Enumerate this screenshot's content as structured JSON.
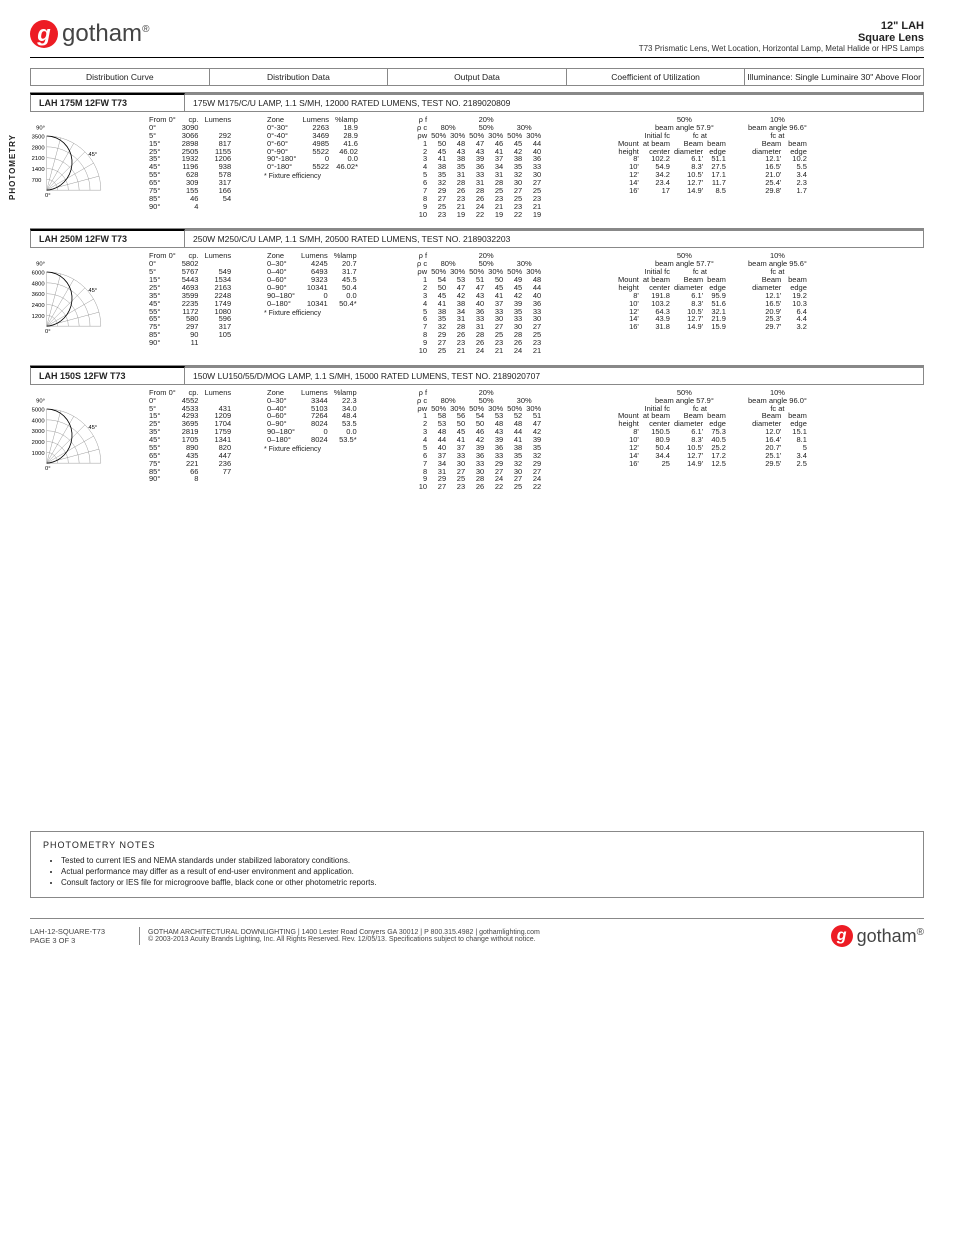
{
  "brand": "gotham",
  "header": {
    "title": "12\" LAH",
    "sub1": "Square Lens",
    "sub2": "T73 Prismatic Lens, Wet Location, Horizontal Lamp, Metal Halide or HPS Lamps"
  },
  "side": "PHOTOMETRY",
  "tabs": [
    "Distribution Curve",
    "Distribution Data",
    "Output Data",
    "Coefficient of Utilization",
    "Illuminance: Single Luminaire 30\" Above Floor"
  ],
  "products": [
    {
      "name": "LAH 175M 12FW T73",
      "desc": "175W M175/C/U LAMP, 1.1 S/MH, 12000 RATED LUMENS, TEST NO. 2189020809",
      "polar_scale": [
        700,
        1400,
        2100,
        2800,
        3500
      ],
      "dist_from_label": "From 0°",
      "dist": {
        "angles": [
          "0°",
          "5°",
          "15°",
          "25°",
          "35°",
          "45°",
          "55°",
          "65°",
          "75°",
          "85°",
          "90°"
        ],
        "cp": [
          3090,
          3066,
          2898,
          2505,
          1932,
          1196,
          628,
          309,
          155,
          46,
          4
        ],
        "lumens": [
          "",
          292,
          817,
          1155,
          1206,
          938,
          578,
          317,
          166,
          54,
          ""
        ]
      },
      "output": {
        "zones": [
          "0°-30°",
          "0°-40°",
          "0°-60°",
          "0°-90°",
          "90°-180°",
          "0°-180°"
        ],
        "lumens": [
          2263,
          3469,
          4985,
          5522,
          0,
          5522
        ],
        "pct": [
          "18.9",
          "28.9",
          "41.6",
          "46.02",
          "0.0",
          "46.02*"
        ],
        "note": "* Fixture efficiency"
      },
      "cu": {
        "pf": [
          "1",
          "2",
          "3",
          "4",
          "5",
          "6",
          "7",
          "8",
          "9",
          "10"
        ],
        "c80": [
          [
            50,
            48
          ],
          [
            45,
            43
          ],
          [
            41,
            38
          ],
          [
            38,
            35
          ],
          [
            35,
            31
          ],
          [
            32,
            28
          ],
          [
            29,
            26
          ],
          [
            27,
            23
          ],
          [
            25,
            21
          ],
          [
            23,
            19
          ]
        ],
        "c50": [
          [
            47,
            46
          ],
          [
            43,
            41
          ],
          [
            39,
            37
          ],
          [
            36,
            34
          ],
          [
            33,
            31
          ],
          [
            31,
            28
          ],
          [
            28,
            25
          ],
          [
            26,
            23
          ],
          [
            24,
            21
          ],
          [
            22,
            19
          ]
        ],
        "c30": [
          [
            45,
            44
          ],
          [
            42,
            40
          ],
          [
            38,
            36
          ],
          [
            35,
            33
          ],
          [
            32,
            30
          ],
          [
            30,
            27
          ],
          [
            27,
            25
          ],
          [
            25,
            23
          ],
          [
            23,
            21
          ],
          [
            22,
            19
          ]
        ]
      },
      "illum": {
        "b50": {
          "angle": "beam angle 57.9°",
          "heights": [
            "8'",
            "10'",
            "12'",
            "14'",
            "16'"
          ],
          "fc": [
            102.2,
            54.9,
            34.2,
            23.4,
            17.0
          ],
          "dia": [
            "6.1'",
            "8.3'",
            "10.5'",
            "12.7'",
            "14.9'"
          ],
          "edge": [
            51.1,
            27.5,
            17.1,
            11.7,
            8.5
          ]
        },
        "b10": {
          "angle": "beam angle 96.6°",
          "heights": [
            "8'",
            "10'",
            "12'",
            "14'",
            "16'"
          ],
          "dia": [
            "12.1'",
            "16.5'",
            "21.0'",
            "25.4'",
            "29.8'"
          ],
          "edge": [
            10.2,
            5.5,
            3.4,
            2.3,
            1.7
          ]
        }
      }
    },
    {
      "name": "LAH 250M 12FW T73",
      "desc": "250W M250/C/U LAMP, 1.1 S/MH, 20500 RATED LUMENS, TEST NO. 2189032203",
      "polar_scale": [
        1200,
        2400,
        3600,
        4800,
        6000
      ],
      "dist": {
        "angles": [
          "0°",
          "5°",
          "15°",
          "25°",
          "35°",
          "45°",
          "55°",
          "65°",
          "75°",
          "85°",
          "90°"
        ],
        "cp": [
          5802,
          5767,
          5443,
          4693,
          3599,
          2235,
          1172,
          580,
          297,
          90,
          11
        ],
        "lumens": [
          "",
          549,
          1534,
          2163,
          2248,
          1749,
          1080,
          596,
          317,
          105,
          ""
        ]
      },
      "output": {
        "zones": [
          "0–30°",
          "0–40°",
          "0–60°",
          "0–90°",
          "90–180°",
          "0–180°"
        ],
        "lumens": [
          4245,
          6493,
          9323,
          10341,
          0,
          10341
        ],
        "pct": [
          "20.7",
          "31.7",
          "45.5",
          "50.4",
          "0.0",
          "50.4*"
        ],
        "note": "* Fixture efficiency"
      },
      "cu": {
        "pf": [
          "1",
          "2",
          "3",
          "4",
          "5",
          "6",
          "7",
          "8",
          "9",
          "10"
        ],
        "c80": [
          [
            54,
            53
          ],
          [
            50,
            47
          ],
          [
            45,
            42
          ],
          [
            41,
            38
          ],
          [
            38,
            34
          ],
          [
            35,
            31
          ],
          [
            32,
            28
          ],
          [
            29,
            26
          ],
          [
            27,
            23
          ],
          [
            25,
            21
          ]
        ],
        "c50": [
          [
            51,
            50
          ],
          [
            47,
            45
          ],
          [
            43,
            41
          ],
          [
            40,
            37
          ],
          [
            36,
            33
          ],
          [
            33,
            30
          ],
          [
            31,
            27
          ],
          [
            28,
            25
          ],
          [
            26,
            23
          ],
          [
            24,
            21
          ]
        ],
        "c30": [
          [
            49,
            48
          ],
          [
            45,
            44
          ],
          [
            42,
            40
          ],
          [
            39,
            36
          ],
          [
            35,
            33
          ],
          [
            33,
            30
          ],
          [
            30,
            27
          ],
          [
            28,
            25
          ],
          [
            26,
            23
          ],
          [
            24,
            21
          ]
        ]
      },
      "illum": {
        "b50": {
          "angle": "beam angle 57.7°",
          "heights": [
            "8'",
            "10'",
            "12'",
            "14'",
            "16'"
          ],
          "fc": [
            191.8,
            103.2,
            64.3,
            43.9,
            31.8
          ],
          "dia": [
            "6.1'",
            "8.3'",
            "10.5'",
            "12.7'",
            "14.9'"
          ],
          "edge": [
            95.9,
            51.6,
            32.1,
            21.9,
            15.9
          ]
        },
        "b10": {
          "angle": "beam angle 95.6°",
          "heights": [
            "8'",
            "10'",
            "12'",
            "14'",
            "16'"
          ],
          "dia": [
            "12.1'",
            "16.5'",
            "20.9'",
            "25.3'",
            "29.7'"
          ],
          "edge": [
            19.2,
            10.3,
            6.4,
            4.4,
            3.2
          ]
        }
      }
    },
    {
      "name": "LAH 150S 12FW T73",
      "desc": "150W LU150/55/D/MOG LAMP, 1.1 S/MH, 15000 RATED LUMENS, TEST NO. 2189020707",
      "polar_scale": [
        1000,
        2000,
        3000,
        4000,
        5000
      ],
      "dist": {
        "angles": [
          "0°",
          "5°",
          "15°",
          "25°",
          "35°",
          "45°",
          "55°",
          "65°",
          "75°",
          "85°",
          "90°"
        ],
        "cp": [
          4552,
          4533,
          4293,
          3695,
          2819,
          1705,
          890,
          435,
          221,
          66,
          8
        ],
        "lumens": [
          "",
          431,
          1209,
          1704,
          1759,
          1341,
          820,
          447,
          236,
          77,
          ""
        ]
      },
      "output": {
        "zones": [
          "0–30°",
          "0–40°",
          "0–60°",
          "0–90°",
          "90–180°",
          "0–180°"
        ],
        "lumens": [
          3344,
          5103,
          7264,
          8024,
          0,
          8024
        ],
        "pct": [
          "22.3",
          "34.0",
          "48.4",
          "53.5",
          "0.0",
          "53.5*"
        ],
        "note": "* Fixture efficiency"
      },
      "cu": {
        "pf": [
          "1",
          "2",
          "3",
          "4",
          "5",
          "6",
          "7",
          "8",
          "9",
          "10"
        ],
        "c80": [
          [
            58,
            56
          ],
          [
            53,
            50
          ],
          [
            48,
            45
          ],
          [
            44,
            41
          ],
          [
            40,
            37
          ],
          [
            37,
            33
          ],
          [
            34,
            30
          ],
          [
            31,
            27
          ],
          [
            29,
            25
          ],
          [
            27,
            23
          ]
        ],
        "c50": [
          [
            54,
            53
          ],
          [
            50,
            48
          ],
          [
            46,
            43
          ],
          [
            42,
            39
          ],
          [
            39,
            36
          ],
          [
            36,
            33
          ],
          [
            33,
            29
          ],
          [
            30,
            27
          ],
          [
            28,
            24
          ],
          [
            26,
            22
          ]
        ],
        "c30": [
          [
            52,
            51
          ],
          [
            48,
            47
          ],
          [
            44,
            42
          ],
          [
            41,
            39
          ],
          [
            38,
            35
          ],
          [
            35,
            32
          ],
          [
            32,
            29
          ],
          [
            30,
            27
          ],
          [
            27,
            24
          ],
          [
            25,
            22
          ]
        ]
      },
      "illum": {
        "b50": {
          "angle": "beam angle 57.9°",
          "heights": [
            "8'",
            "10'",
            "12'",
            "14'",
            "16'"
          ],
          "fc": [
            150.5,
            80.9,
            50.4,
            34.4,
            25.0
          ],
          "dia": [
            "6.1'",
            "8.3'",
            "10.5'",
            "12.7'",
            "14.9'"
          ],
          "edge": [
            75.3,
            40.5,
            25.2,
            17.2,
            12.5
          ]
        },
        "b10": {
          "angle": "beam angle 96.0°",
          "heights": [
            "8'",
            "10'",
            "12'",
            "14'",
            "16'"
          ],
          "dia": [
            "12.0'",
            "16.4'",
            "20.7'",
            "25.1'",
            "29.5'"
          ],
          "edge": [
            15.1,
            8.1,
            5.0,
            3.4,
            2.5
          ]
        }
      }
    }
  ],
  "notes": {
    "title": "PHOTOMETRY NOTES",
    "items": [
      "Tested to current IES and NEMA standards under stabilized laboratory conditions.",
      "Actual performance may differ as a result of end-user environment and application.",
      "Consult factory or IES file for microgroove baffle, black cone or other photometric reports."
    ]
  },
  "footer": {
    "code": "LAH-12-SQUARE-T73",
    "page": "PAGE 3 OF 3",
    "line1": "GOTHAM ARCHITECTURAL DOWNLIGHTING  |  1400 Lester Road Conyers GA 30012  |  P 800.315.4982  |  gothamlighting.com",
    "line2": "© 2003-2013 Acuity Brands Lighting, Inc. All Rights Reserved. Rev. 12/05/13. Specifications subject to change without notice."
  }
}
